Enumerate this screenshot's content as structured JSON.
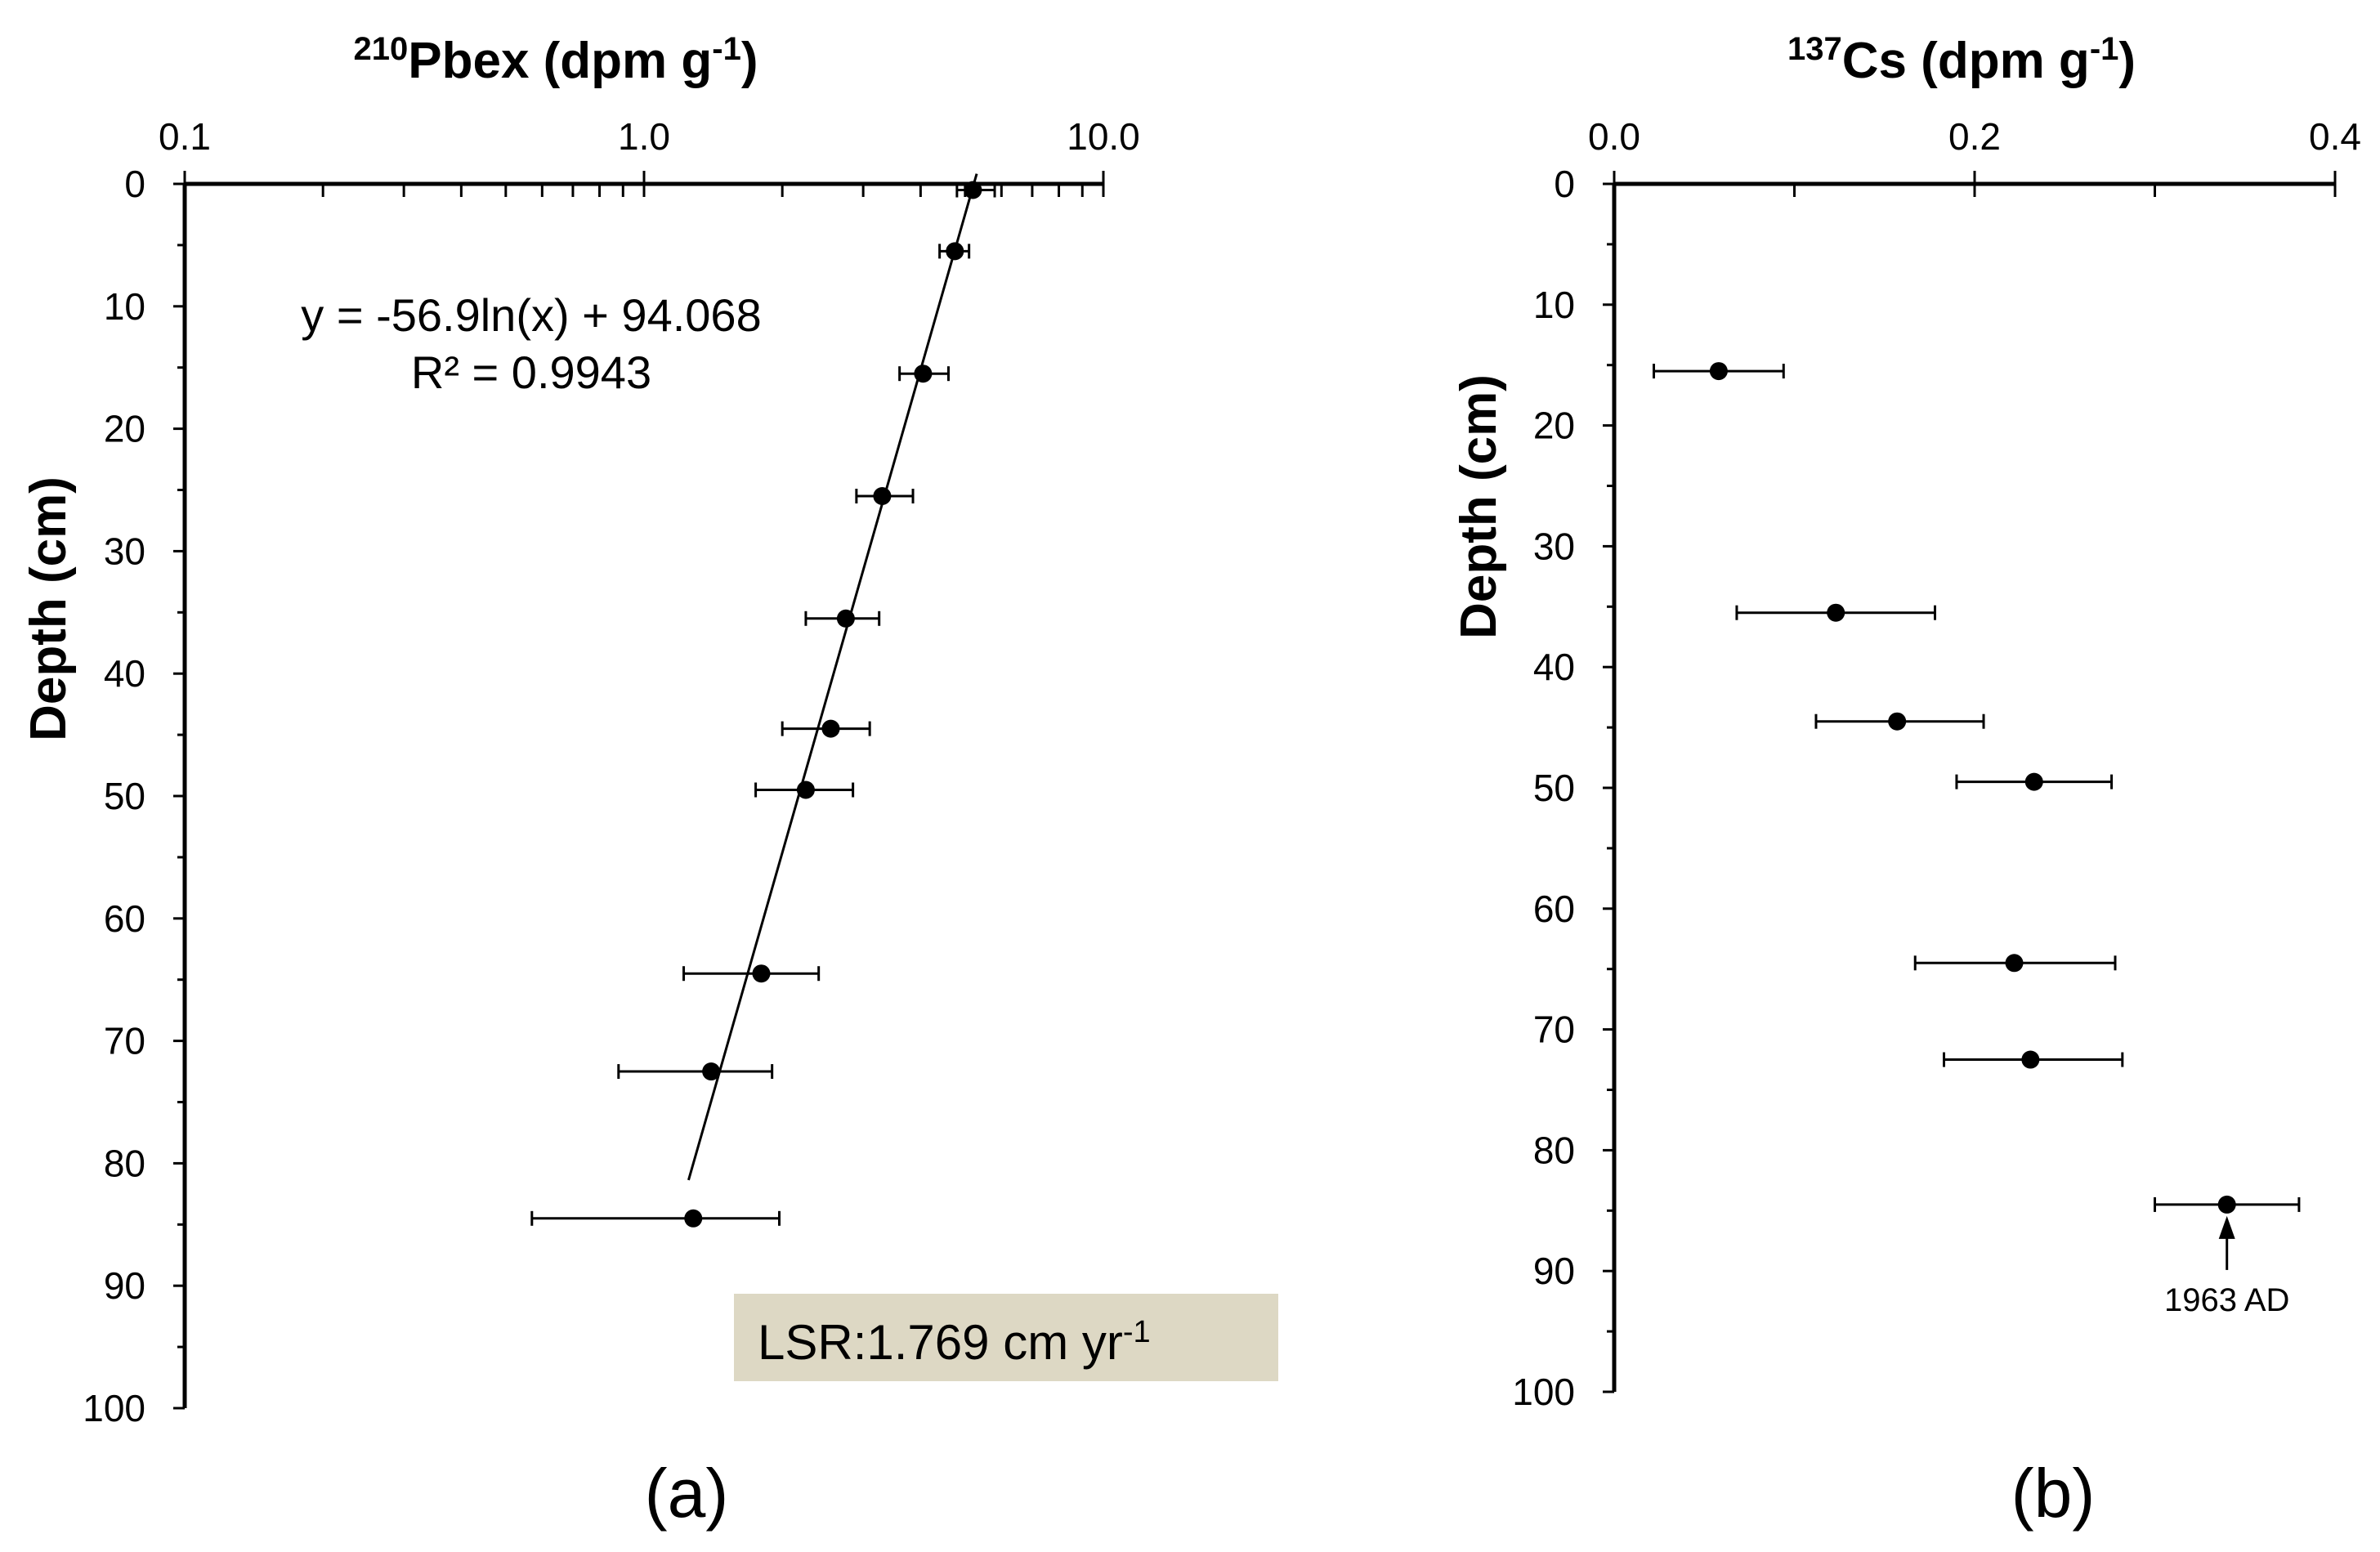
{
  "chart_data": [
    {
      "type": "scatter",
      "panel_label": "(a)",
      "title": {
        "base": "Pbex (dpm g",
        "sup_prefix": "210",
        "sup_unit": "-1",
        "close": ")"
      },
      "x_scale": "log",
      "xlim": [
        0.1,
        10.0
      ],
      "x_ticks": [
        0.1,
        1.0,
        10.0
      ],
      "x_tick_labels": [
        "0.1",
        "1.0",
        "10.0"
      ],
      "ylabel": "Depth (cm)",
      "ylim": [
        0,
        100
      ],
      "y_ticks": [
        0,
        10,
        20,
        30,
        40,
        50,
        60,
        70,
        80,
        90,
        100
      ],
      "y_tick_labels": [
        "0",
        "10",
        "20",
        "30",
        "40",
        "50",
        "60",
        "70",
        "80",
        "90",
        "100"
      ],
      "points": [
        {
          "depth": 0.5,
          "x": 5.2,
          "err_lo": 4.8,
          "err_hi": 5.8
        },
        {
          "depth": 5.5,
          "x": 4.75,
          "err_lo": 4.4,
          "err_hi": 5.1
        },
        {
          "depth": 15.5,
          "x": 4.05,
          "err_lo": 3.6,
          "err_hi": 4.6
        },
        {
          "depth": 25.5,
          "x": 3.3,
          "err_lo": 2.9,
          "err_hi": 3.85
        },
        {
          "depth": 35.5,
          "x": 2.75,
          "err_lo": 2.25,
          "err_hi": 3.25
        },
        {
          "depth": 44.5,
          "x": 2.55,
          "err_lo": 2.0,
          "err_hi": 3.1
        },
        {
          "depth": 49.5,
          "x": 2.25,
          "err_lo": 1.75,
          "err_hi": 2.85
        },
        {
          "depth": 64.5,
          "x": 1.8,
          "err_lo": 1.22,
          "err_hi": 2.4
        },
        {
          "depth": 72.5,
          "x": 1.4,
          "err_lo": 0.88,
          "err_hi": 1.9
        },
        {
          "depth": 84.5,
          "x": 1.28,
          "err_lo": 0.57,
          "err_hi": 1.97
        }
      ],
      "fit": {
        "equation": "y = -56.9ln(x) + 94.068",
        "r2": "R² = 0.9943",
        "slope": -56.9,
        "intercept": 94.068,
        "x_from": 1.25,
        "x_to": 5.3
      },
      "lsr": {
        "text": "LSR:1.769 cm yr",
        "sup": "-1",
        "box_color": "#ddd8c4"
      }
    },
    {
      "type": "scatter",
      "panel_label": "(b)",
      "title": {
        "base": "Cs (dpm g",
        "sup_prefix": "137",
        "sup_unit": "-1",
        "close": ")"
      },
      "x_scale": "linear",
      "xlim": [
        0.0,
        0.4
      ],
      "x_ticks": [
        0.0,
        0.2,
        0.4
      ],
      "x_tick_labels": [
        "0.0",
        "0.2",
        "0.4"
      ],
      "ylabel": "Depth (cm)",
      "ylim": [
        0,
        100
      ],
      "y_ticks": [
        0,
        10,
        20,
        30,
        40,
        50,
        60,
        70,
        80,
        90,
        100
      ],
      "y_tick_labels": [
        "0",
        "10",
        "20",
        "30",
        "40",
        "50",
        "60",
        "70",
        "80",
        "90",
        "100"
      ],
      "points": [
        {
          "depth": 15.5,
          "x": 0.058,
          "err_lo": 0.022,
          "err_hi": 0.094
        },
        {
          "depth": 35.5,
          "x": 0.123,
          "err_lo": 0.068,
          "err_hi": 0.178
        },
        {
          "depth": 44.5,
          "x": 0.157,
          "err_lo": 0.112,
          "err_hi": 0.205
        },
        {
          "depth": 49.5,
          "x": 0.233,
          "err_lo": 0.19,
          "err_hi": 0.276
        },
        {
          "depth": 64.5,
          "x": 0.222,
          "err_lo": 0.167,
          "err_hi": 0.278
        },
        {
          "depth": 72.5,
          "x": 0.231,
          "err_lo": 0.183,
          "err_hi": 0.282
        },
        {
          "depth": 84.5,
          "x": 0.34,
          "err_lo": 0.3,
          "err_hi": 0.38
        }
      ],
      "annotation": {
        "text": "1963 AD",
        "depth": 84.5,
        "x": 0.34
      }
    }
  ]
}
